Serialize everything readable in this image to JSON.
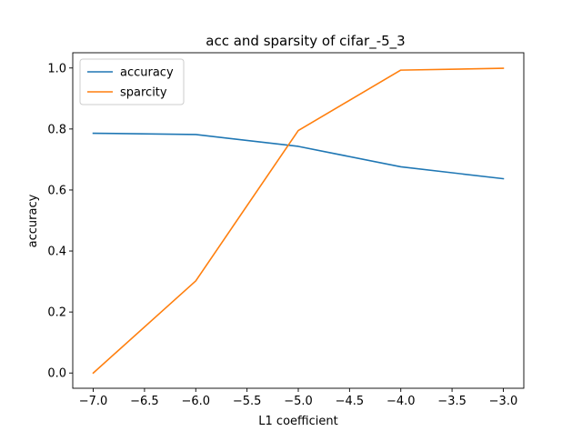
{
  "chart_data": {
    "type": "line",
    "title": "acc and sparsity of cifar_-5_3",
    "xlabel": "L1 coefficient",
    "ylabel": "accuracy",
    "x": [
      -7.0,
      -6.0,
      -5.0,
      -4.0,
      -3.0
    ],
    "series": [
      {
        "name": "accuracy",
        "color": "#1f77b4",
        "values": [
          0.786,
          0.782,
          0.743,
          0.676,
          0.637
        ]
      },
      {
        "name": "sparcity",
        "color": "#ff7f0e",
        "values": [
          0.0,
          0.302,
          0.795,
          0.993,
          0.999
        ]
      }
    ],
    "xlim": [
      -7.2,
      -2.8
    ],
    "ylim": [
      -0.05,
      1.05
    ],
    "xticks": [
      -7.0,
      -6.5,
      -6.0,
      -5.5,
      -5.0,
      -4.5,
      -4.0,
      -3.5,
      -3.0
    ],
    "xtick_labels": [
      "−7.0",
      "−6.5",
      "−6.0",
      "−5.5",
      "−5.0",
      "−4.5",
      "−4.0",
      "−3.5",
      "−3.0"
    ],
    "yticks": [
      0.0,
      0.2,
      0.4,
      0.6,
      0.8,
      1.0
    ],
    "ytick_labels": [
      "0.0",
      "0.2",
      "0.4",
      "0.6",
      "0.8",
      "1.0"
    ],
    "grid": false,
    "legend_position": "top-left"
  }
}
